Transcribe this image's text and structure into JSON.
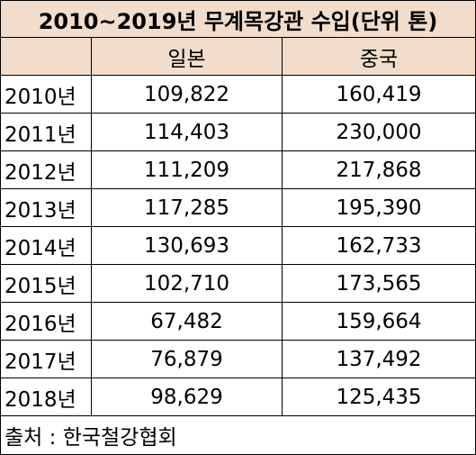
{
  "title": "2010~2019년 무계목강관 수입(단위 톤)",
  "headers": [
    "",
    "일본",
    "중국"
  ],
  "rows": [
    {
      "year": "2010년",
      "japan": "109,822",
      "china": "160,419"
    },
    {
      "year": "2011년",
      "japan": "114,403",
      "china": "230,000"
    },
    {
      "year": "2012년",
      "japan": "111,209",
      "china": "217,868"
    },
    {
      "year": "2013년",
      "japan": "117,285",
      "china": "195,390"
    },
    {
      "year": "2014년",
      "japan": "130,693",
      "china": "162,733"
    },
    {
      "year": "2015년",
      "japan": "102,710",
      "china": "173,565"
    },
    {
      "year": "2016년",
      "japan": "67,482",
      "china": "159,664"
    },
    {
      "year": "2017년",
      "japan": "76,879",
      "china": "137,492"
    },
    {
      "year": "2018년",
      "japan": "98,629",
      "china": "125,435"
    }
  ],
  "source": "출처 : 한국철강협회",
  "colors": {
    "header_bg": "#f2ddcc",
    "border": "#000000"
  }
}
